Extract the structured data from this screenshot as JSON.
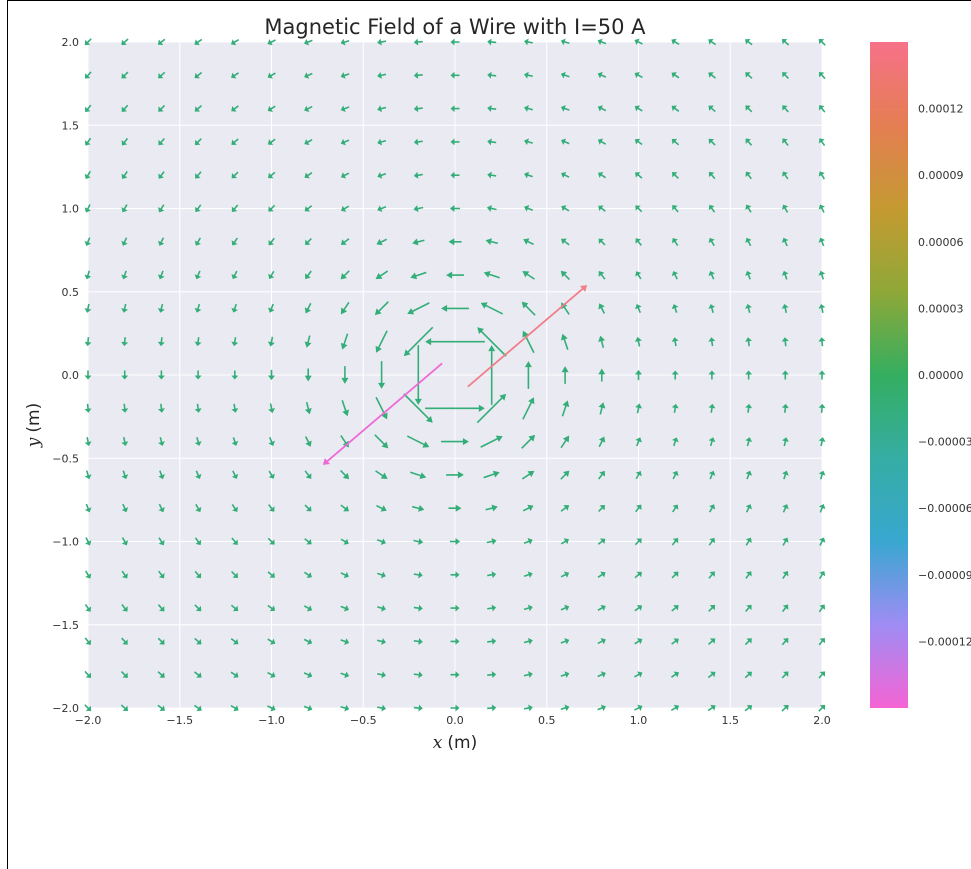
{
  "chart_data": {
    "type": "quiver",
    "title": "Magnetic Field of a Wire with I=50 A",
    "xlabel_var": "x",
    "xlabel_unit": "(m)",
    "ylabel_var": "y",
    "ylabel_unit": "(m)",
    "xlim": [
      -2.0,
      2.0
    ],
    "ylim": [
      -2.0,
      2.0
    ],
    "xticks": [
      "−2.0",
      "−1.5",
      "−1.0",
      "−0.5",
      "0.0",
      "0.5",
      "1.0",
      "1.5",
      "2.0"
    ],
    "xtick_values": [
      -2.0,
      -1.5,
      -1.0,
      -0.5,
      0.0,
      0.5,
      1.0,
      1.5,
      2.0
    ],
    "yticks": [
      "2.0",
      "1.5",
      "1.0",
      "0.5",
      "0.0",
      "−0.5",
      "−1.0",
      "−1.5",
      "−2.0"
    ],
    "ytick_values": [
      2.0,
      1.5,
      1.0,
      0.5,
      0.0,
      -0.5,
      -1.0,
      -1.5,
      -2.0
    ],
    "grid": true,
    "background": "#eaeaf2",
    "field": {
      "current": 50,
      "grid_n": 21,
      "wire_direction": "counter-clockwise field circulation around the origin"
    },
    "wire_arrows": [
      {
        "name": "upper-right wire segment",
        "x0": 0.07,
        "y0": -0.07,
        "x1": 0.72,
        "y1": 0.54,
        "value": 0.00014
      },
      {
        "name": "lower-left wire segment",
        "x0": -0.07,
        "y0": 0.07,
        "x1": -0.72,
        "y1": -0.54,
        "value": -0.00014
      }
    ],
    "colorbar": {
      "min": -0.00015,
      "max": 0.00015,
      "ticks": [
        "0.00012",
        "0.00009",
        "0.00006",
        "0.00003",
        "0.00000",
        "−0.00003",
        "−0.00006",
        "−0.00009",
        "−0.00012"
      ],
      "tick_values": [
        0.00012,
        9e-05,
        6e-05,
        3e-05,
        0.0,
        -3e-05,
        -6e-05,
        -9e-05,
        -0.00012
      ],
      "colors": [
        "#f77189",
        "#d58c32",
        "#a4a031",
        "#50b131",
        "#34ae91",
        "#37abb5",
        "#3ba3ec",
        "#bb83f4",
        "#f564d4"
      ]
    },
    "field_arrow_color": "#34ae78"
  }
}
